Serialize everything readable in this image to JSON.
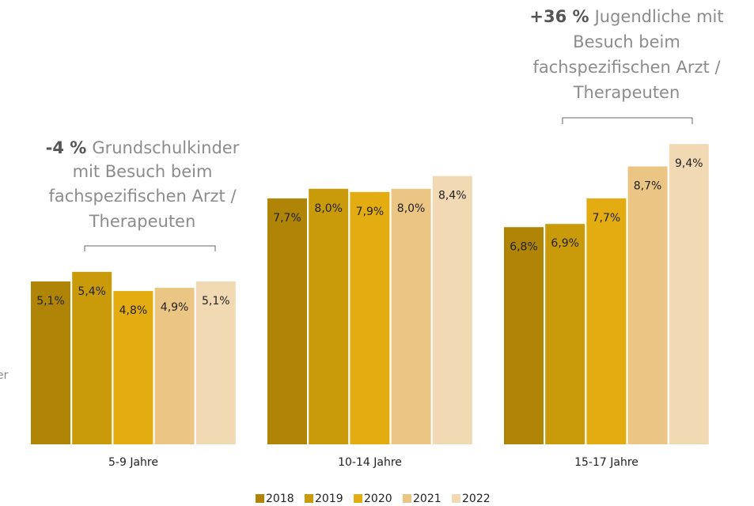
{
  "chart_data": {
    "type": "bar",
    "categories": [
      "5-9 Jahre",
      "10-14 Jahre",
      "15-17 Jahre"
    ],
    "series": [
      {
        "name": "2018",
        "color": "#b08406",
        "values": [
          5.1,
          7.7,
          6.8
        ],
        "value_labels": [
          "5,1%",
          "7,7%",
          "6,8%"
        ]
      },
      {
        "name": "2019",
        "color": "#c99a0a",
        "values": [
          5.4,
          8.0,
          6.9
        ],
        "value_labels": [
          "5,4%",
          "8,0%",
          "6,9%"
        ]
      },
      {
        "name": "2020",
        "color": "#e3ac10",
        "values": [
          4.8,
          7.9,
          7.7
        ],
        "value_labels": [
          "4,8%",
          "7,9%",
          "7,7%"
        ]
      },
      {
        "name": "2021",
        "color": "#ebc584",
        "values": [
          4.9,
          8.0,
          8.7
        ],
        "value_labels": [
          "4,9%",
          "8,0%",
          "8,7%"
        ]
      },
      {
        "name": "2022",
        "color": "#f1d9b3",
        "values": [
          5.1,
          8.4,
          9.4
        ],
        "value_labels": [
          "5,1%",
          "8,4%",
          "9,4%"
        ]
      }
    ],
    "annotations": [
      {
        "highlight": "-4 %",
        "lines": [
          "Grundschulkinder",
          "mit Besuch beim",
          "fachspezifischen Arzt /",
          "Therapeuten"
        ]
      },
      {
        "highlight": "+36 %",
        "lines": [
          "Jugendliche mit",
          "Besuch beim",
          "fachspezifischen Arzt /",
          "Therapeuten"
        ]
      }
    ],
    "cut_text": "er"
  }
}
